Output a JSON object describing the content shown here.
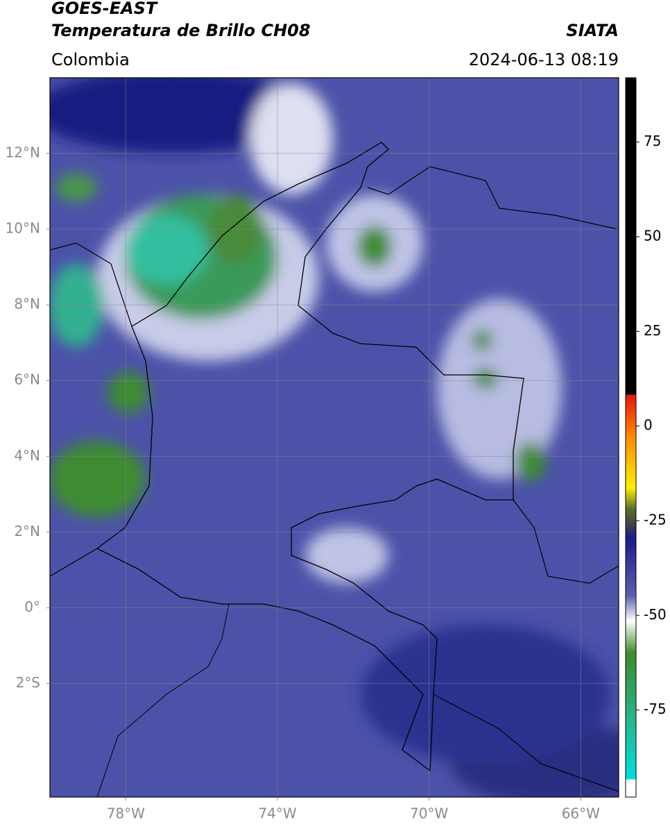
{
  "header": {
    "title": "GOES-EAST",
    "subtitle": "Temperatura de Brillo CH08",
    "source": "SIATA",
    "region": "Colombia",
    "datetime": "2024-06-13 08:19"
  },
  "map": {
    "xlim": [
      -80,
      -65
    ],
    "ylim": [
      -5,
      14
    ],
    "xticks": [
      {
        "value": -78,
        "label": "78°W"
      },
      {
        "value": -74,
        "label": "74°W"
      },
      {
        "value": -70,
        "label": "70°W"
      },
      {
        "value": -66,
        "label": "66°W"
      }
    ],
    "yticks": [
      {
        "value": 12,
        "label": "12°N"
      },
      {
        "value": 10,
        "label": "10°N"
      },
      {
        "value": 8,
        "label": "8°N"
      },
      {
        "value": 6,
        "label": "6°N"
      },
      {
        "value": 4,
        "label": "4°N"
      },
      {
        "value": 2,
        "label": "2°N"
      },
      {
        "value": 0,
        "label": "0°"
      },
      {
        "value": -2,
        "label": "2°S"
      }
    ],
    "grid": true
  },
  "colorbar": {
    "lim": [
      -98,
      92
    ],
    "ticks": [
      75,
      50,
      25,
      0,
      -25,
      -50,
      -75
    ]
  }
}
